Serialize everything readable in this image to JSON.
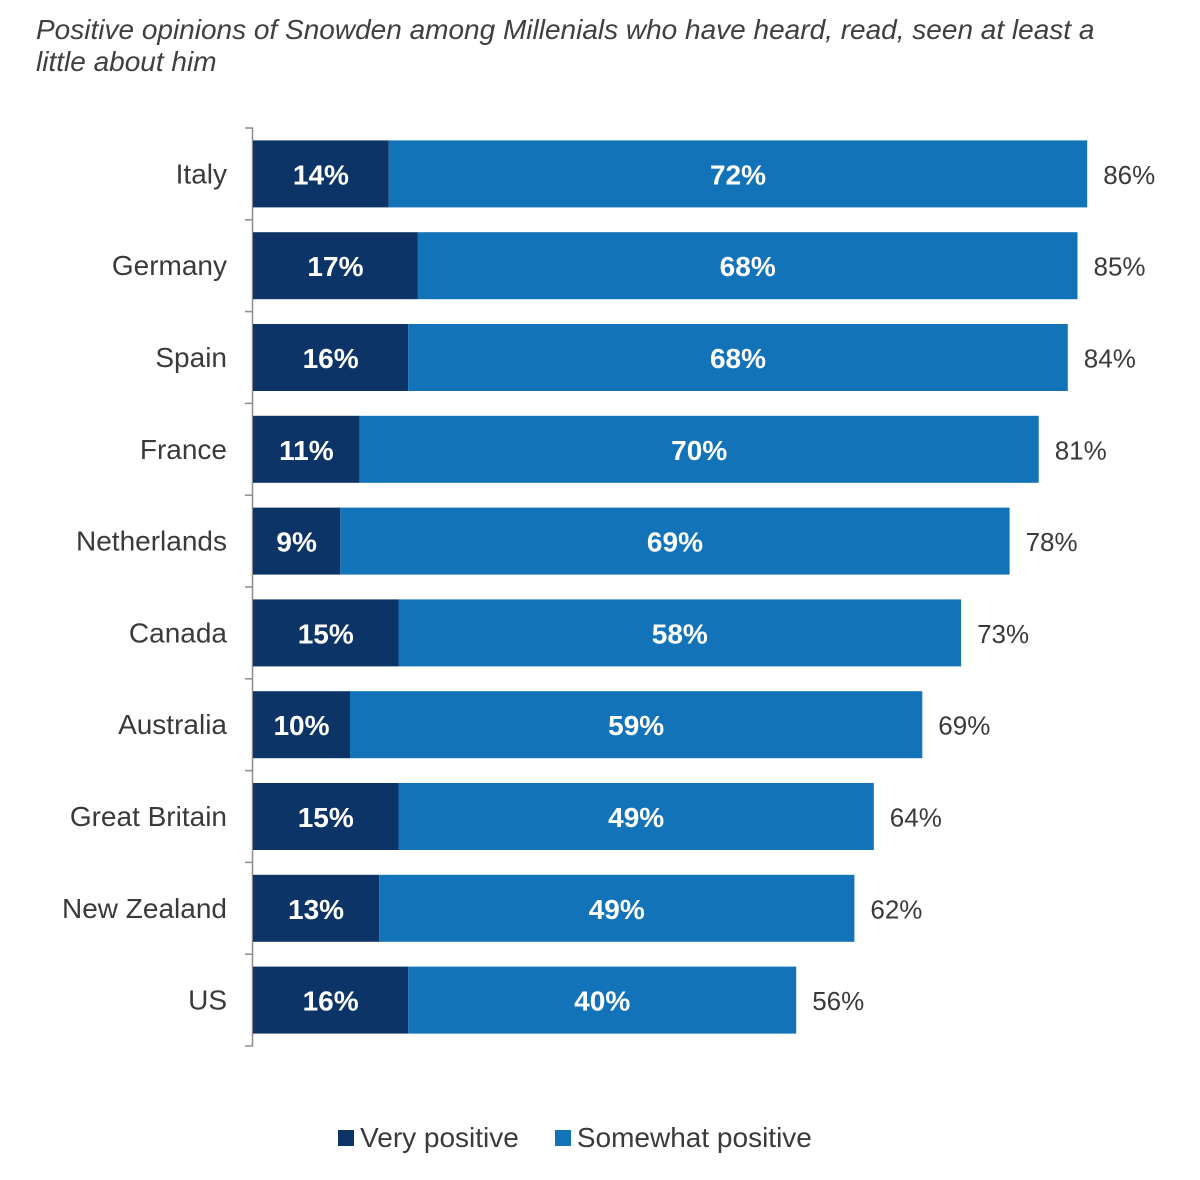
{
  "chart_data": {
    "type": "bar",
    "orientation": "horizontal",
    "stacked": true,
    "title": "Positive opinions of Snowden among Millenials who have heard, read, seen at least a little about him",
    "categories": [
      "Italy",
      "Germany",
      "Spain",
      "France",
      "Netherlands",
      "Canada",
      "Australia",
      "Great Britain",
      "New Zealand",
      "US"
    ],
    "series": [
      {
        "name": "Very positive",
        "color": "#0d3467",
        "values": [
          14,
          17,
          16,
          11,
          9,
          15,
          10,
          15,
          13,
          16
        ],
        "labels": [
          "14%",
          "17%",
          "16%",
          "11%",
          "9%",
          "15%",
          "10%",
          "15%",
          "13%",
          "16%"
        ]
      },
      {
        "name": "Somewhat positive",
        "color": "#1273b9",
        "values": [
          72,
          68,
          68,
          70,
          69,
          58,
          59,
          49,
          49,
          40
        ],
        "labels": [
          "72%",
          "68%",
          "68%",
          "70%",
          "69%",
          "58%",
          "59%",
          "49%",
          "49%",
          "40%"
        ]
      }
    ],
    "totals": [
      86,
      85,
      84,
      81,
      78,
      73,
      69,
      64,
      62,
      56
    ],
    "total_labels": [
      "86%",
      "85%",
      "84%",
      "81%",
      "78%",
      "73%",
      "69%",
      "64%",
      "62%",
      "56%"
    ],
    "xlim": [
      0,
      100
    ],
    "legend_position": "bottom-center",
    "legend": [
      "Very positive",
      "Somewhat positive"
    ],
    "grid": false
  }
}
